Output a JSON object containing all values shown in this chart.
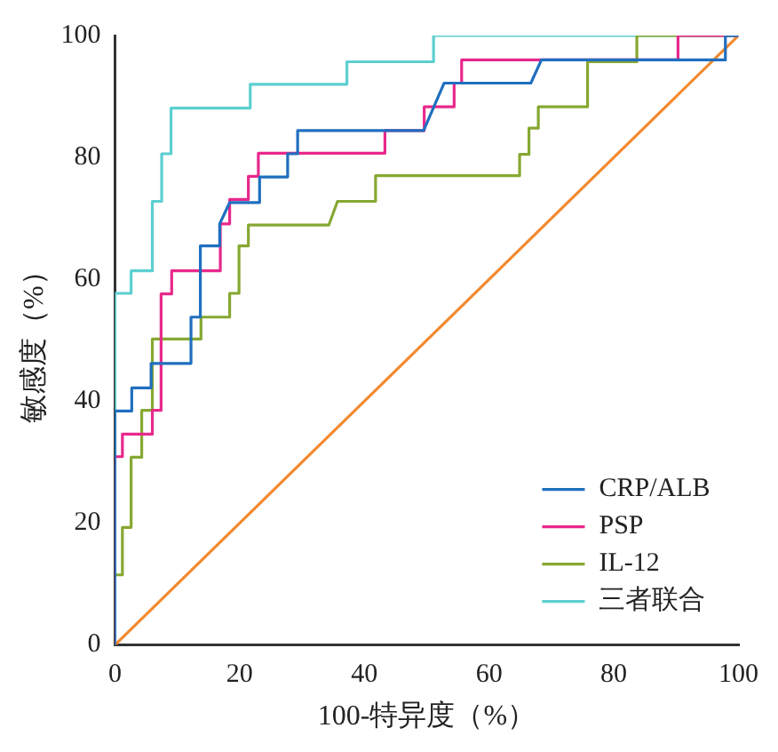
{
  "chart_data": {
    "type": "line",
    "xlabel": "100-特异度（%）",
    "ylabel": "敏感度（%）",
    "xlim": [
      0,
      100
    ],
    "ylim": [
      0,
      100
    ],
    "xticks": [
      0,
      20,
      40,
      60,
      80,
      100
    ],
    "yticks": [
      0,
      20,
      40,
      60,
      80,
      100
    ],
    "grid": false,
    "legend": "bottom right",
    "marker": "none",
    "line_style": "solid",
    "series": [
      {
        "name": "CRP/ALB",
        "color": "#1f6fbf",
        "x": [
          0,
          0,
          2.7,
          2.7,
          5.8,
          5.8,
          12.2,
          12.2,
          13.7,
          13.7,
          16.8,
          16.8,
          18.4,
          23.2,
          23.2,
          27.7,
          27.7,
          29.3,
          29.3,
          49.5,
          52.8,
          66.7,
          68.4,
          97.9,
          97.9,
          100
        ],
        "values": [
          0,
          38.4,
          38.4,
          42.2,
          42.2,
          46.2,
          46.2,
          53.8,
          53.8,
          65.5,
          65.5,
          69.1,
          72.6,
          72.6,
          76.8,
          76.8,
          80.6,
          80.6,
          84.4,
          84.4,
          92.2,
          92.2,
          96,
          96,
          100,
          100
        ]
      },
      {
        "name": "PSP",
        "color": "#e8288c",
        "x": [
          0,
          0,
          1.2,
          1.2,
          6,
          6,
          7.4,
          7.4,
          9.1,
          9.1,
          16.9,
          16.9,
          18.4,
          18.4,
          21.4,
          21.4,
          23,
          23,
          43.3,
          43.3,
          49.6,
          49.6,
          54.4,
          54.4,
          55.6,
          55.6,
          90.3,
          90.3,
          100
        ],
        "values": [
          0,
          30.9,
          30.9,
          34.6,
          34.6,
          38.5,
          38.5,
          57.6,
          57.6,
          61.4,
          61.4,
          69.1,
          69.1,
          73.1,
          73.1,
          76.9,
          76.9,
          80.7,
          80.7,
          84.4,
          84.4,
          88.3,
          88.3,
          92.2,
          92.2,
          96,
          96,
          100,
          100
        ]
      },
      {
        "name": "IL-12",
        "color": "#86a832",
        "x": [
          0,
          0,
          1.2,
          1.2,
          2.6,
          2.6,
          4.3,
          4.3,
          6,
          6,
          13.8,
          13.8,
          18.4,
          18.4,
          19.9,
          19.9,
          21.4,
          21.4,
          34.3,
          35.7,
          41.8,
          41.8,
          64.9,
          64.9,
          66.4,
          66.4,
          67.9,
          67.9,
          75.8,
          75.8,
          83.7,
          83.7,
          100
        ],
        "values": [
          0,
          11.5,
          11.5,
          19.3,
          19.3,
          30.8,
          30.8,
          38.5,
          38.5,
          50.2,
          50.2,
          53.8,
          53.8,
          57.7,
          57.7,
          65.5,
          65.5,
          68.9,
          68.9,
          72.8,
          72.8,
          77,
          77,
          80.5,
          80.5,
          84.8,
          84.8,
          88.3,
          88.3,
          95.7,
          95.7,
          100,
          100
        ]
      },
      {
        "name": "三者联合",
        "color": "#5ccfd0",
        "x": [
          0,
          0,
          2.6,
          2.6,
          6,
          6,
          7.5,
          7.5,
          9,
          9,
          21.7,
          21.7,
          37.2,
          37.2,
          51.1,
          51.1,
          100
        ],
        "values": [
          0,
          57.7,
          57.7,
          61.4,
          61.4,
          72.8,
          72.8,
          80.6,
          80.6,
          88.1,
          88.1,
          92,
          92,
          95.7,
          95.7,
          100,
          100
        ]
      },
      {
        "color": "#f28a30",
        "x": [
          0,
          100
        ],
        "values": [
          0,
          100
        ]
      }
    ]
  }
}
